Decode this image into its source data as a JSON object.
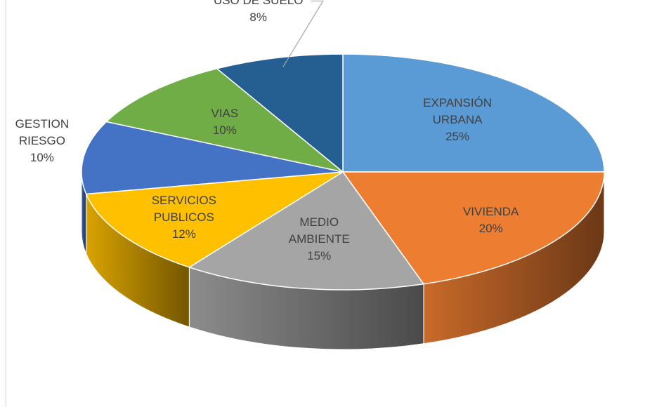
{
  "chart_data": {
    "type": "pie3d",
    "categories": [
      "EXPANSIÓN URBANA",
      "VIVIENDA",
      "MEDIO AMBIENTE",
      "SERVICIOS PUBLICOS",
      "GESTION RIESGO",
      "VIAS",
      "USO DE SUELO"
    ],
    "values": [
      25,
      20,
      15,
      12,
      10,
      10,
      8
    ],
    "value_labels": [
      "25%",
      "20%",
      "15%",
      "12%",
      "10%",
      "10%",
      "8%"
    ],
    "colors": [
      "#5b9bd5",
      "#ed7d31",
      "#a5a5a5",
      "#ffc000",
      "#4472c4",
      "#70ad47",
      "#255e91"
    ]
  }
}
